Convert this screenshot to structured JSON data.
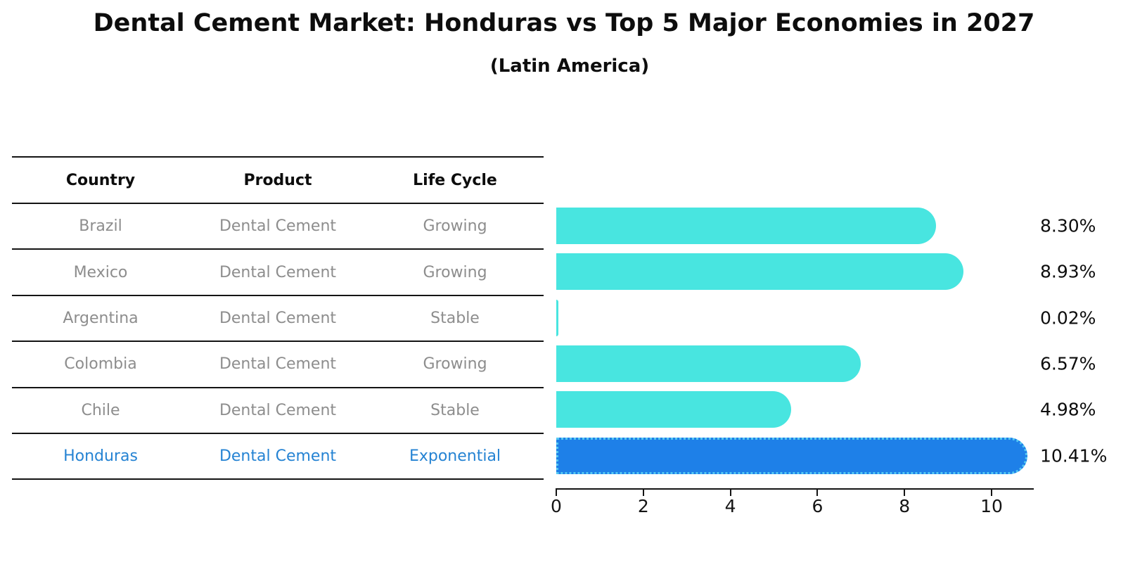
{
  "page": {
    "title": "Dental Cement Market: Honduras vs Top 5 Major Economies in 2027",
    "subtitle": "(Latin America)"
  },
  "table": {
    "headers": [
      "Country",
      "Product",
      "Life Cycle"
    ],
    "rows": [
      {
        "country": "Brazil",
        "product": "Dental Cement",
        "life_cycle": "Growing",
        "highlight": false
      },
      {
        "country": "Mexico",
        "product": "Dental Cement",
        "life_cycle": "Growing",
        "highlight": false
      },
      {
        "country": "Argentina",
        "product": "Dental Cement",
        "life_cycle": "Stable",
        "highlight": false
      },
      {
        "country": "Colombia",
        "product": "Dental Cement",
        "life_cycle": "Growing",
        "highlight": false
      },
      {
        "country": "Chile",
        "product": "Dental Cement",
        "life_cycle": "Stable",
        "highlight": false
      },
      {
        "country": "Honduras",
        "product": "Dental Cement",
        "life_cycle": "Exponential",
        "highlight": true
      }
    ]
  },
  "chart_data": {
    "type": "bar",
    "orientation": "horizontal",
    "title": "Dental Cement Market: Honduras vs Top 5 Major Economies in 2027",
    "subtitle": "(Latin America)",
    "categories": [
      "Brazil",
      "Mexico",
      "Argentina",
      "Colombia",
      "Chile",
      "Honduras"
    ],
    "values": [
      8.3,
      8.93,
      0.02,
      6.57,
      4.98,
      10.41
    ],
    "value_labels": [
      "8.30%",
      "8.93%",
      "0.02%",
      "6.57%",
      "4.98%",
      "10.41%"
    ],
    "highlight_index": 5,
    "xlim": [
      0,
      11
    ],
    "xticks": [
      0,
      2,
      4,
      6,
      8,
      10
    ],
    "grid": false,
    "legend": false,
    "colors": {
      "bar": "#48e5e0",
      "highlight_bar": "#1e80e8",
      "highlight_border": "#55c9f2",
      "row_text": "#8d8d8d",
      "highlight_text": "#2583d3",
      "axis": "#141414"
    }
  }
}
